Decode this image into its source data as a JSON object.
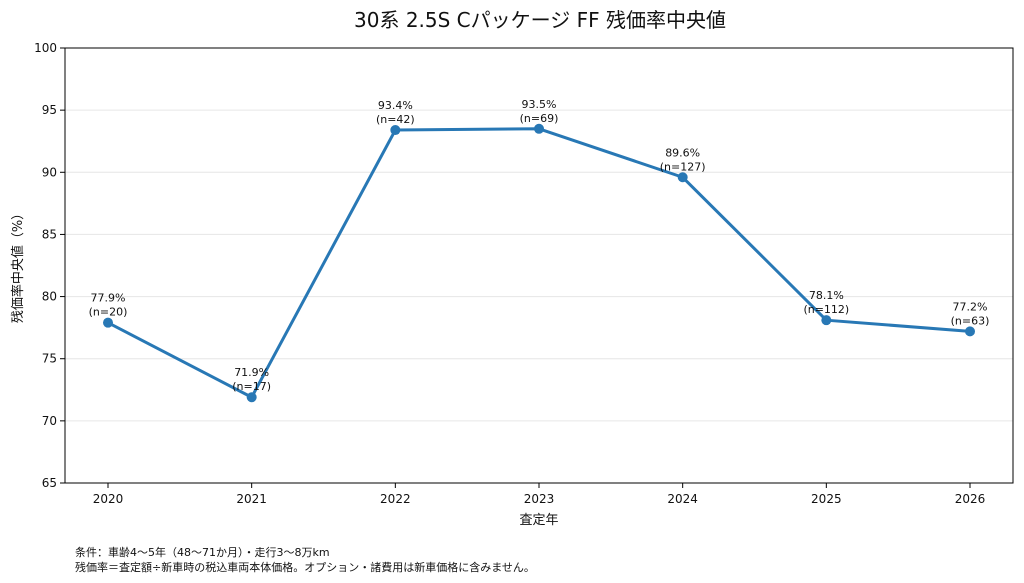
{
  "chart_data": {
    "type": "line",
    "title": "30系 2.5S Cパッケージ FF 残価率中央値",
    "xlabel": "査定年",
    "ylabel": "残価率中央値（%）",
    "ylim": [
      65,
      100
    ],
    "yticks": [
      65,
      70,
      75,
      80,
      85,
      90,
      95,
      100
    ],
    "grid": true,
    "categories": [
      "2020",
      "2021",
      "2022",
      "2023",
      "2024",
      "2025",
      "2026"
    ],
    "series": [
      {
        "values": [
          77.9,
          71.9,
          93.4,
          93.5,
          89.6,
          78.1,
          77.2
        ],
        "labels": [
          "77.9%",
          "71.9%",
          "93.4%",
          "93.5%",
          "89.6%",
          "78.1%",
          "77.2%"
        ],
        "counts": [
          "(n=20)",
          "(n=17)",
          "(n=42)",
          "(n=69)",
          "(n=127)",
          "(n=112)",
          "(n=63)"
        ],
        "color": "#2878b5"
      }
    ]
  },
  "notes": [
    "条件：車齢4〜5年（48〜71か月）・走行3〜8万km",
    "残価率＝査定額÷新車時の税込車両本体価格。オプション・諸費用は新車価格に含みません。"
  ]
}
